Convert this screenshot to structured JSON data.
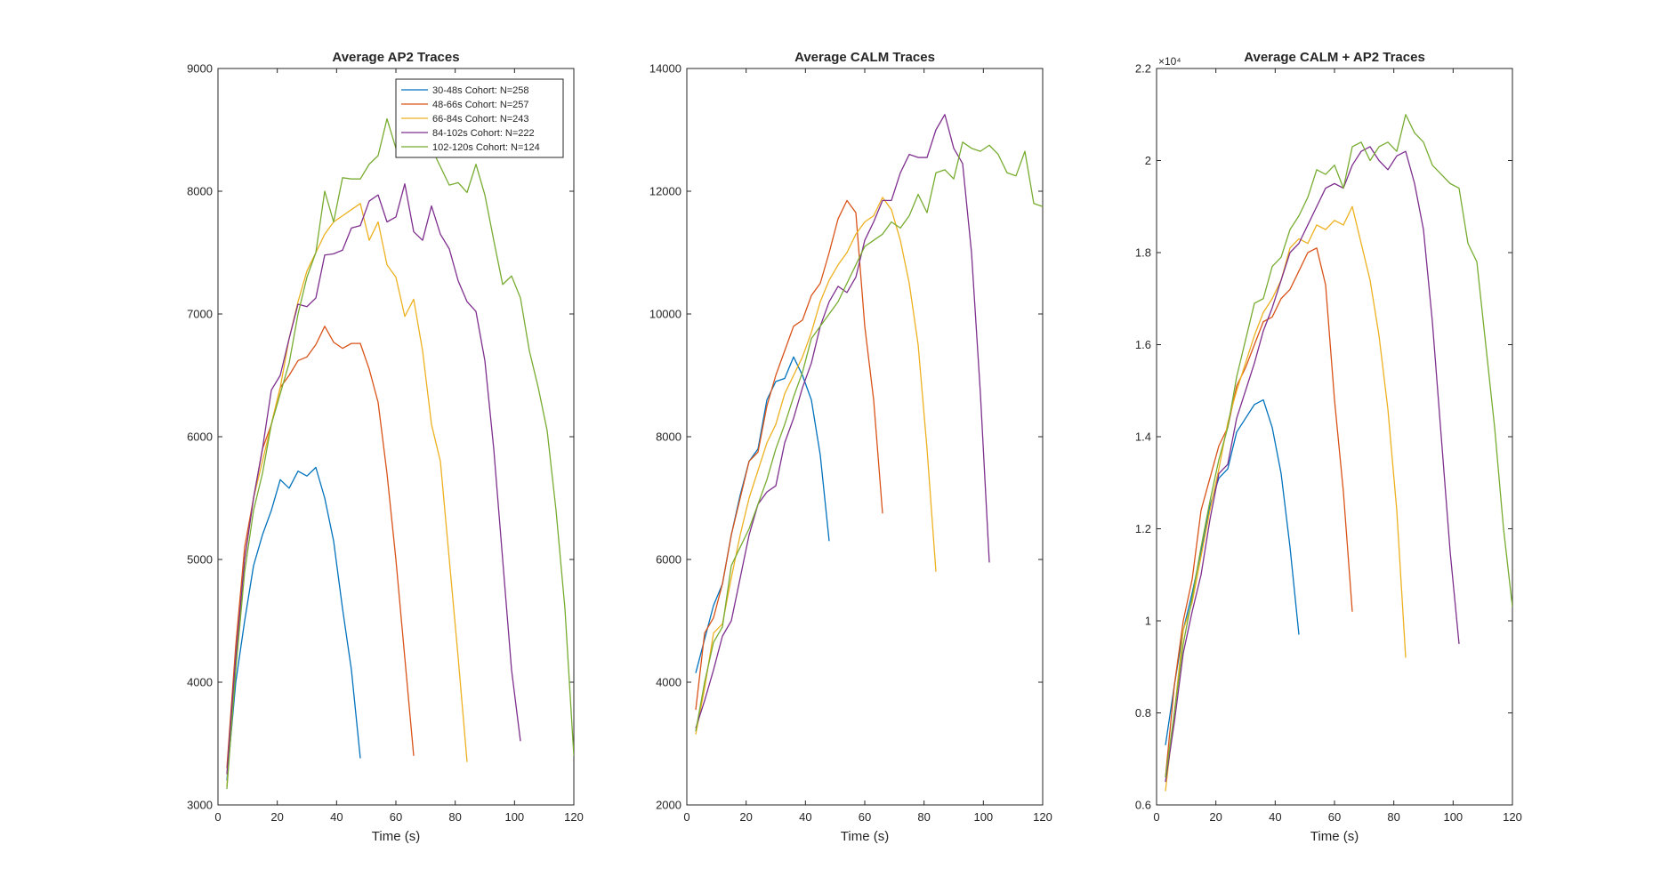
{
  "chart_data": [
    {
      "type": "line",
      "title": "Average AP2 Traces",
      "xlabel": "Time (s)",
      "ylabel": "",
      "xlim": [
        0,
        120
      ],
      "ylim": [
        3000,
        9000
      ],
      "xticks": [
        0,
        20,
        40,
        60,
        80,
        100,
        120
      ],
      "yticks": [
        3000,
        4000,
        5000,
        6000,
        7000,
        8000,
        9000
      ],
      "y_exponent": "",
      "legend": {
        "position": "top-right",
        "entries": [
          "30-48s Cohort: N=258",
          "48-66s Cohort: N=257",
          "66-84s Cohort: N=243",
          "84-102s Cohort: N=222",
          "102-120s Cohort: N=124"
        ]
      },
      "series": [
        {
          "name": "30-48s Cohort: N=258",
          "color": "#0072bd",
          "x": [
            3,
            6,
            9,
            12,
            15,
            18,
            21,
            24,
            27,
            30,
            33,
            36,
            39,
            42,
            45,
            48
          ],
          "y": [
            3200,
            4000,
            4500,
            4950,
            5200,
            5400,
            5650,
            5580,
            5720,
            5680,
            5750,
            5500,
            5150,
            4600,
            4100,
            3380
          ]
        },
        {
          "name": "48-66s Cohort: N=257",
          "color": "#d95319",
          "x": [
            3,
            6,
            9,
            12,
            15,
            18,
            21,
            24,
            27,
            30,
            33,
            36,
            39,
            42,
            45,
            48,
            51,
            54,
            57,
            60,
            63,
            66
          ],
          "y": [
            3300,
            4300,
            5100,
            5500,
            5900,
            6100,
            6400,
            6500,
            6620,
            6650,
            6750,
            6900,
            6770,
            6720,
            6760,
            6760,
            6550,
            6280,
            5700,
            5000,
            4200,
            3400
          ]
        },
        {
          "name": "66-84s Cohort: N=243",
          "color": "#edb120",
          "x": [
            3,
            6,
            9,
            12,
            15,
            18,
            21,
            24,
            27,
            30,
            33,
            36,
            39,
            42,
            45,
            48,
            51,
            54,
            57,
            60,
            63,
            66,
            69,
            72,
            75,
            78,
            81,
            84
          ],
          "y": [
            3150,
            4200,
            5000,
            5500,
            5800,
            6100,
            6400,
            6800,
            7100,
            7350,
            7500,
            7650,
            7750,
            7800,
            7850,
            7900,
            7600,
            7750,
            7400,
            7300,
            6980,
            7120,
            6700,
            6100,
            5800,
            5000,
            4200,
            3350
          ]
        },
        {
          "name": "84-102s Cohort: N=222",
          "color": "#7e2f8e",
          "x": [
            3,
            6,
            9,
            12,
            15,
            18,
            21,
            24,
            27,
            30,
            33,
            36,
            39,
            42,
            45,
            48,
            51,
            54,
            57,
            60,
            63,
            66,
            69,
            72,
            75,
            78,
            81,
            84,
            87,
            90,
            93,
            96,
            99,
            102
          ],
          "y": [
            3250,
            4200,
            5000,
            5500,
            5900,
            6380,
            6500,
            6800,
            7080,
            7060,
            7130,
            7480,
            7490,
            7520,
            7700,
            7720,
            7920,
            7970,
            7750,
            7790,
            8060,
            7670,
            7600,
            7880,
            7650,
            7530,
            7270,
            7100,
            7020,
            6620,
            5900,
            5000,
            4100,
            3520
          ]
        },
        {
          "name": "102-120s Cohort: N=124",
          "color": "#77ac30",
          "x": [
            3,
            6,
            9,
            12,
            15,
            18,
            21,
            24,
            27,
            30,
            33,
            36,
            39,
            42,
            45,
            48,
            51,
            54,
            57,
            60,
            63,
            66,
            69,
            72,
            75,
            78,
            81,
            84,
            87,
            90,
            93,
            96,
            99,
            102,
            105,
            108,
            111,
            114,
            117,
            120
          ],
          "y": [
            3130,
            4100,
            4900,
            5400,
            5700,
            6100,
            6350,
            6600,
            7000,
            7300,
            7500,
            8000,
            7750,
            8110,
            8100,
            8100,
            8220,
            8290,
            8590,
            8350,
            8300,
            8400,
            8380,
            8350,
            8200,
            8050,
            8070,
            7990,
            8220,
            7970,
            7600,
            7240,
            7310,
            7130,
            6700,
            6400,
            6050,
            5400,
            4600,
            3400
          ]
        }
      ]
    },
    {
      "type": "line",
      "title": "Average CALM Traces",
      "xlabel": "Time (s)",
      "ylabel": "",
      "xlim": [
        0,
        120
      ],
      "ylim": [
        2000,
        14000
      ],
      "xticks": [
        0,
        20,
        40,
        60,
        80,
        100,
        120
      ],
      "yticks": [
        2000,
        4000,
        6000,
        8000,
        10000,
        12000,
        14000
      ],
      "y_exponent": "",
      "series": [
        {
          "name": "30-48s Cohort: N=258",
          "color": "#0072bd",
          "x": [
            3,
            6,
            9,
            12,
            15,
            18,
            21,
            24,
            27,
            30,
            33,
            36,
            39,
            42,
            45,
            48
          ],
          "y": [
            4150,
            4700,
            5250,
            5600,
            6400,
            7050,
            7600,
            7800,
            8600,
            8900,
            8950,
            9300,
            9000,
            8600,
            7700,
            6300
          ]
        },
        {
          "name": "48-66s Cohort: N=257",
          "color": "#d95319",
          "x": [
            3,
            6,
            9,
            12,
            15,
            18,
            21,
            24,
            27,
            30,
            33,
            36,
            39,
            42,
            45,
            48,
            51,
            54,
            57,
            60,
            63,
            66
          ],
          "y": [
            3550,
            4800,
            5050,
            5600,
            6400,
            7000,
            7600,
            7750,
            8500,
            9000,
            9400,
            9800,
            9900,
            10300,
            10500,
            11000,
            11550,
            11850,
            11650,
            9800,
            8600,
            6750
          ]
        },
        {
          "name": "66-84s Cohort: N=243",
          "color": "#edb120",
          "x": [
            3,
            6,
            9,
            12,
            15,
            18,
            21,
            24,
            27,
            30,
            33,
            36,
            39,
            42,
            45,
            48,
            51,
            54,
            57,
            60,
            63,
            66,
            69,
            72,
            75,
            78,
            81,
            84
          ],
          "y": [
            3150,
            3900,
            4800,
            4950,
            5700,
            6400,
            7000,
            7450,
            7900,
            8200,
            8700,
            9000,
            9300,
            9700,
            10200,
            10550,
            10800,
            11000,
            11300,
            11500,
            11600,
            11900,
            11700,
            11200,
            10500,
            9500,
            7800,
            5800
          ]
        },
        {
          "name": "84-102s Cohort: N=222",
          "color": "#7e2f8e",
          "x": [
            3,
            6,
            9,
            12,
            15,
            18,
            21,
            24,
            27,
            30,
            33,
            36,
            39,
            42,
            45,
            48,
            51,
            54,
            57,
            60,
            63,
            66,
            69,
            72,
            75,
            78,
            81,
            84,
            87,
            90,
            93,
            96,
            99,
            102
          ],
          "y": [
            3250,
            3700,
            4200,
            4750,
            5000,
            5700,
            6400,
            6900,
            7100,
            7200,
            7900,
            8300,
            8800,
            9200,
            9800,
            10200,
            10450,
            10350,
            10600,
            11200,
            11500,
            11850,
            11850,
            12300,
            12600,
            12550,
            12550,
            13000,
            13250,
            12700,
            12450,
            11000,
            8700,
            5950
          ]
        },
        {
          "name": "102-120s Cohort: N=124",
          "color": "#77ac30",
          "x": [
            3,
            6,
            9,
            12,
            15,
            18,
            21,
            24,
            27,
            30,
            33,
            36,
            39,
            42,
            45,
            48,
            51,
            54,
            57,
            60,
            63,
            66,
            69,
            72,
            75,
            78,
            81,
            84,
            87,
            90,
            93,
            96,
            99,
            102,
            105,
            108,
            111,
            114,
            117,
            120
          ],
          "y": [
            3200,
            4000,
            4650,
            4900,
            5900,
            6200,
            6500,
            6900,
            7300,
            7800,
            8200,
            8650,
            9050,
            9600,
            9800,
            10000,
            10200,
            10500,
            10800,
            11100,
            11200,
            11300,
            11500,
            11400,
            11600,
            11950,
            11650,
            12300,
            12350,
            12200,
            12800,
            12700,
            12650,
            12750,
            12600,
            12300,
            12250,
            12650,
            11800,
            11750
          ]
        }
      ]
    },
    {
      "type": "line",
      "title": "Average CALM + AP2 Traces",
      "xlabel": "Time (s)",
      "ylabel": "",
      "xlim": [
        0,
        120
      ],
      "ylim": [
        0.6,
        2.2
      ],
      "xticks": [
        0,
        20,
        40,
        60,
        80,
        100,
        120
      ],
      "yticks": [
        0.6,
        0.8,
        1,
        1.2,
        1.4,
        1.6,
        1.8,
        2,
        2.2
      ],
      "y_exponent": "×10⁴",
      "series": [
        {
          "name": "30-48s Cohort: N=258",
          "color": "#0072bd",
          "x": [
            3,
            6,
            9,
            12,
            15,
            18,
            21,
            24,
            27,
            30,
            33,
            36,
            39,
            42,
            45,
            48
          ],
          "y": [
            0.73,
            0.86,
            0.98,
            1.06,
            1.15,
            1.25,
            1.31,
            1.33,
            1.41,
            1.44,
            1.47,
            1.48,
            1.42,
            1.32,
            1.16,
            0.97
          ]
        },
        {
          "name": "48-66s Cohort: N=257",
          "color": "#d95319",
          "x": [
            3,
            6,
            9,
            12,
            15,
            18,
            21,
            24,
            27,
            30,
            33,
            36,
            39,
            42,
            45,
            48,
            51,
            54,
            57,
            60,
            63,
            66
          ],
          "y": [
            0.66,
            0.86,
            1.0,
            1.09,
            1.24,
            1.31,
            1.38,
            1.42,
            1.51,
            1.55,
            1.6,
            1.65,
            1.66,
            1.7,
            1.72,
            1.76,
            1.8,
            1.81,
            1.73,
            1.48,
            1.28,
            1.02
          ]
        },
        {
          "name": "66-84s Cohort: N=243",
          "color": "#edb120",
          "x": [
            3,
            6,
            9,
            12,
            15,
            18,
            21,
            24,
            27,
            30,
            33,
            36,
            39,
            42,
            45,
            48,
            51,
            54,
            57,
            60,
            63,
            66,
            69,
            72,
            75,
            78,
            81,
            84
          ],
          "y": [
            0.63,
            0.8,
            0.98,
            1.04,
            1.14,
            1.24,
            1.33,
            1.43,
            1.5,
            1.56,
            1.62,
            1.67,
            1.7,
            1.74,
            1.81,
            1.83,
            1.82,
            1.86,
            1.85,
            1.87,
            1.86,
            1.9,
            1.82,
            1.74,
            1.62,
            1.46,
            1.24,
            0.92
          ]
        },
        {
          "name": "84-102s Cohort: N=222",
          "color": "#7e2f8e",
          "x": [
            3,
            6,
            9,
            12,
            15,
            18,
            21,
            24,
            27,
            30,
            33,
            36,
            39,
            42,
            45,
            48,
            51,
            54,
            57,
            60,
            63,
            66,
            69,
            72,
            75,
            78,
            81,
            84,
            87,
            90,
            93,
            96,
            99,
            102
          ],
          "y": [
            0.65,
            0.78,
            0.93,
            1.02,
            1.1,
            1.22,
            1.32,
            1.34,
            1.44,
            1.5,
            1.56,
            1.63,
            1.68,
            1.74,
            1.8,
            1.82,
            1.86,
            1.9,
            1.94,
            1.95,
            1.94,
            1.99,
            2.02,
            2.03,
            2.0,
            1.98,
            2.01,
            2.02,
            1.95,
            1.85,
            1.65,
            1.4,
            1.15,
            0.95
          ]
        },
        {
          "name": "102-120s Cohort: N=124",
          "color": "#77ac30",
          "x": [
            3,
            6,
            9,
            12,
            15,
            18,
            21,
            24,
            27,
            30,
            33,
            36,
            39,
            42,
            45,
            48,
            51,
            54,
            57,
            60,
            63,
            66,
            69,
            72,
            75,
            78,
            81,
            84,
            87,
            90,
            93,
            96,
            99,
            102,
            105,
            108,
            111,
            114,
            117,
            120
          ],
          "y": [
            0.66,
            0.8,
            0.95,
            1.05,
            1.16,
            1.26,
            1.35,
            1.42,
            1.53,
            1.61,
            1.69,
            1.7,
            1.77,
            1.79,
            1.85,
            1.88,
            1.92,
            1.98,
            1.97,
            1.99,
            1.94,
            2.03,
            2.04,
            2.0,
            2.03,
            2.04,
            2.02,
            2.1,
            2.06,
            2.04,
            1.99,
            1.97,
            1.95,
            1.94,
            1.82,
            1.78,
            1.6,
            1.42,
            1.2,
            1.03
          ]
        }
      ]
    }
  ]
}
